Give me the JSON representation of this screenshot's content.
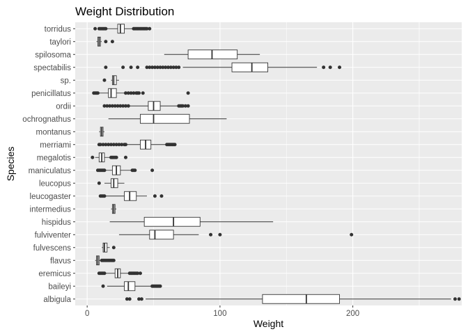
{
  "chart_data": {
    "type": "boxplot",
    "orientation": "horizontal",
    "title": "Weight Distribution",
    "xlabel": "Weight",
    "ylabel": "Species",
    "xlim": [
      -9,
      282
    ],
    "xticks": [
      0,
      100,
      200
    ],
    "panel_background": "#ebebeb",
    "grid": true,
    "grid_color": "#ffffff",
    "box_fill": "#ffffff",
    "line_color": "#333333",
    "categories": [
      "albigula",
      "baileyi",
      "eremicus",
      "flavus",
      "fulvescens",
      "fulviventer",
      "hispidus",
      "intermedius",
      "leucogaster",
      "leucopus",
      "maniculatus",
      "megalotis",
      "merriami",
      "montanus",
      "ochrognathus",
      "ordii",
      "penicillatus",
      "sp.",
      "spectabilis",
      "spilosoma",
      "taylori",
      "torridus"
    ],
    "boxes": [
      {
        "species": "albigula",
        "q1": 132,
        "median": 165,
        "q3": 190,
        "whisker_low": 44,
        "whisker_high": 274,
        "outliers": [
          30,
          32,
          39,
          41,
          277,
          280
        ]
      },
      {
        "species": "baileyi",
        "q1": 28,
        "median": 31,
        "q3": 36,
        "whisker_low": 15,
        "whisker_high": 48,
        "outliers": [
          12,
          49,
          50,
          51,
          52,
          53,
          54,
          55
        ]
      },
      {
        "species": "eremicus",
        "q1": 21,
        "median": 23,
        "q3": 25,
        "whisker_low": 14,
        "whisker_high": 31,
        "outliers": [
          9,
          10,
          11,
          12,
          13,
          32,
          33,
          34,
          35,
          36,
          37,
          38,
          40
        ]
      },
      {
        "species": "flavus",
        "q1": 7,
        "median": 8,
        "q3": 9,
        "whisker_low": 6,
        "whisker_high": 10,
        "outliers": [
          11,
          12,
          13,
          14,
          15,
          16,
          17,
          18,
          19,
          20
        ]
      },
      {
        "species": "fulvescens",
        "q1": 12,
        "median": 13,
        "q3": 15,
        "whisker_low": 11,
        "whisker_high": 17,
        "outliers": [
          20
        ]
      },
      {
        "species": "fulviventer",
        "q1": 47,
        "median": 51,
        "q3": 65,
        "whisker_low": 24,
        "whisker_high": 84,
        "outliers": [
          93,
          100,
          199
        ]
      },
      {
        "species": "hispidus",
        "q1": 43,
        "median": 65,
        "q3": 85,
        "whisker_low": 17,
        "whisker_high": 140,
        "outliers": []
      },
      {
        "species": "intermedius",
        "q1": 19,
        "median": 20,
        "q3": 21,
        "whisker_low": 18,
        "whisker_high": 22,
        "outliers": []
      },
      {
        "species": "leucogaster",
        "q1": 28,
        "median": 32,
        "q3": 37,
        "whisker_low": 14,
        "whisker_high": 45,
        "outliers": [
          10,
          11,
          12,
          13,
          51,
          56
        ]
      },
      {
        "species": "leucopus",
        "q1": 18,
        "median": 20,
        "q3": 23,
        "whisker_low": 13,
        "whisker_high": 28,
        "outliers": [
          9
        ]
      },
      {
        "species": "maniculatus",
        "q1": 19,
        "median": 22,
        "q3": 25,
        "whisker_low": 14,
        "whisker_high": 33,
        "outliers": [
          8,
          9,
          10,
          11,
          12,
          13,
          34,
          35,
          36,
          49
        ]
      },
      {
        "species": "megalotis",
        "q1": 9,
        "median": 11,
        "q3": 13,
        "whisker_low": 6,
        "whisker_high": 17,
        "outliers": [
          4,
          18,
          19,
          20,
          21,
          22,
          29
        ]
      },
      {
        "species": "merriami",
        "q1": 40,
        "median": 44,
        "q3": 48,
        "whisker_low": 30,
        "whisker_high": 59,
        "outliers": [
          9,
          10,
          12,
          14,
          16,
          18,
          20,
          22,
          24,
          26,
          28,
          29,
          60,
          61,
          62,
          63,
          64,
          65,
          66
        ]
      },
      {
        "species": "montanus",
        "q1": 10,
        "median": 11,
        "q3": 12,
        "whisker_low": 9,
        "whisker_high": 13,
        "outliers": []
      },
      {
        "species": "ochrognathus",
        "q1": 40,
        "median": 50,
        "q3": 77,
        "whisker_low": 16,
        "whisker_high": 105,
        "outliers": []
      },
      {
        "species": "ordii",
        "q1": 46,
        "median": 50,
        "q3": 55,
        "whisker_low": 32,
        "whisker_high": 68,
        "outliers": [
          13,
          15,
          17,
          19,
          21,
          23,
          25,
          27,
          29,
          31,
          69,
          70,
          71,
          72,
          74,
          76
        ]
      },
      {
        "species": "penicillatus",
        "q1": 16,
        "median": 18,
        "q3": 22,
        "whisker_low": 9,
        "whisker_high": 28,
        "outliers": [
          5,
          6,
          7,
          8,
          29,
          31,
          33,
          35,
          37,
          38,
          39,
          42,
          76
        ]
      },
      {
        "species": "sp.",
        "q1": 19,
        "median": 20,
        "q3": 22,
        "whisker_low": 18,
        "whisker_high": 24,
        "outliers": [
          13
        ]
      },
      {
        "species": "spectabilis",
        "q1": 109,
        "median": 124,
        "q3": 136,
        "whisker_low": 72,
        "whisker_high": 173,
        "outliers": [
          14,
          27,
          33,
          38,
          45,
          47,
          49,
          51,
          53,
          55,
          57,
          59,
          61,
          63,
          65,
          67,
          69,
          178,
          183,
          190
        ]
      },
      {
        "species": "spilosoma",
        "q1": 76,
        "median": 94,
        "q3": 113,
        "whisker_low": 58,
        "whisker_high": 130,
        "outliers": []
      },
      {
        "species": "taylori",
        "q1": 8,
        "median": 9,
        "q3": 10,
        "whisker_low": 7,
        "whisker_high": 11,
        "outliers": [
          14,
          19
        ]
      },
      {
        "species": "torridus",
        "q1": 23,
        "median": 25,
        "q3": 28,
        "whisker_low": 15,
        "whisker_high": 34,
        "outliers": [
          6,
          9,
          10,
          11,
          12,
          13,
          14,
          35,
          36,
          37,
          38,
          39,
          40,
          41,
          42,
          43,
          44,
          45,
          47
        ]
      }
    ]
  }
}
